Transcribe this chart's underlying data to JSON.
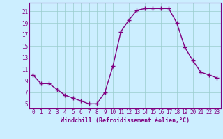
{
  "x": [
    0,
    1,
    2,
    3,
    4,
    5,
    6,
    7,
    8,
    9,
    10,
    11,
    12,
    13,
    14,
    15,
    16,
    17,
    18,
    19,
    20,
    21,
    22,
    23
  ],
  "y": [
    10,
    8.5,
    8.5,
    7.5,
    6.5,
    6.0,
    5.5,
    5.0,
    5.0,
    7.0,
    11.5,
    17.5,
    19.5,
    21.2,
    21.5,
    21.5,
    21.5,
    21.5,
    19.0,
    14.8,
    12.5,
    10.5,
    10.0,
    9.5
  ],
  "line_color": "#800080",
  "marker": "+",
  "markersize": 4,
  "markeredgewidth": 1.0,
  "linewidth": 1.0,
  "bg_color": "#cceeff",
  "grid_color": "#99cccc",
  "xlabel": "Windchill (Refroidissement éolien,°C)",
  "xlabel_fontsize": 6.0,
  "tick_fontsize": 5.5,
  "xticks": [
    0,
    1,
    2,
    3,
    4,
    5,
    6,
    7,
    8,
    9,
    10,
    11,
    12,
    13,
    14,
    15,
    16,
    17,
    18,
    19,
    20,
    21,
    22,
    23
  ],
  "yticks": [
    5,
    7,
    9,
    11,
    13,
    15,
    17,
    19,
    21
  ],
  "ylim": [
    4.2,
    22.5
  ],
  "xlim": [
    -0.5,
    23.5
  ]
}
